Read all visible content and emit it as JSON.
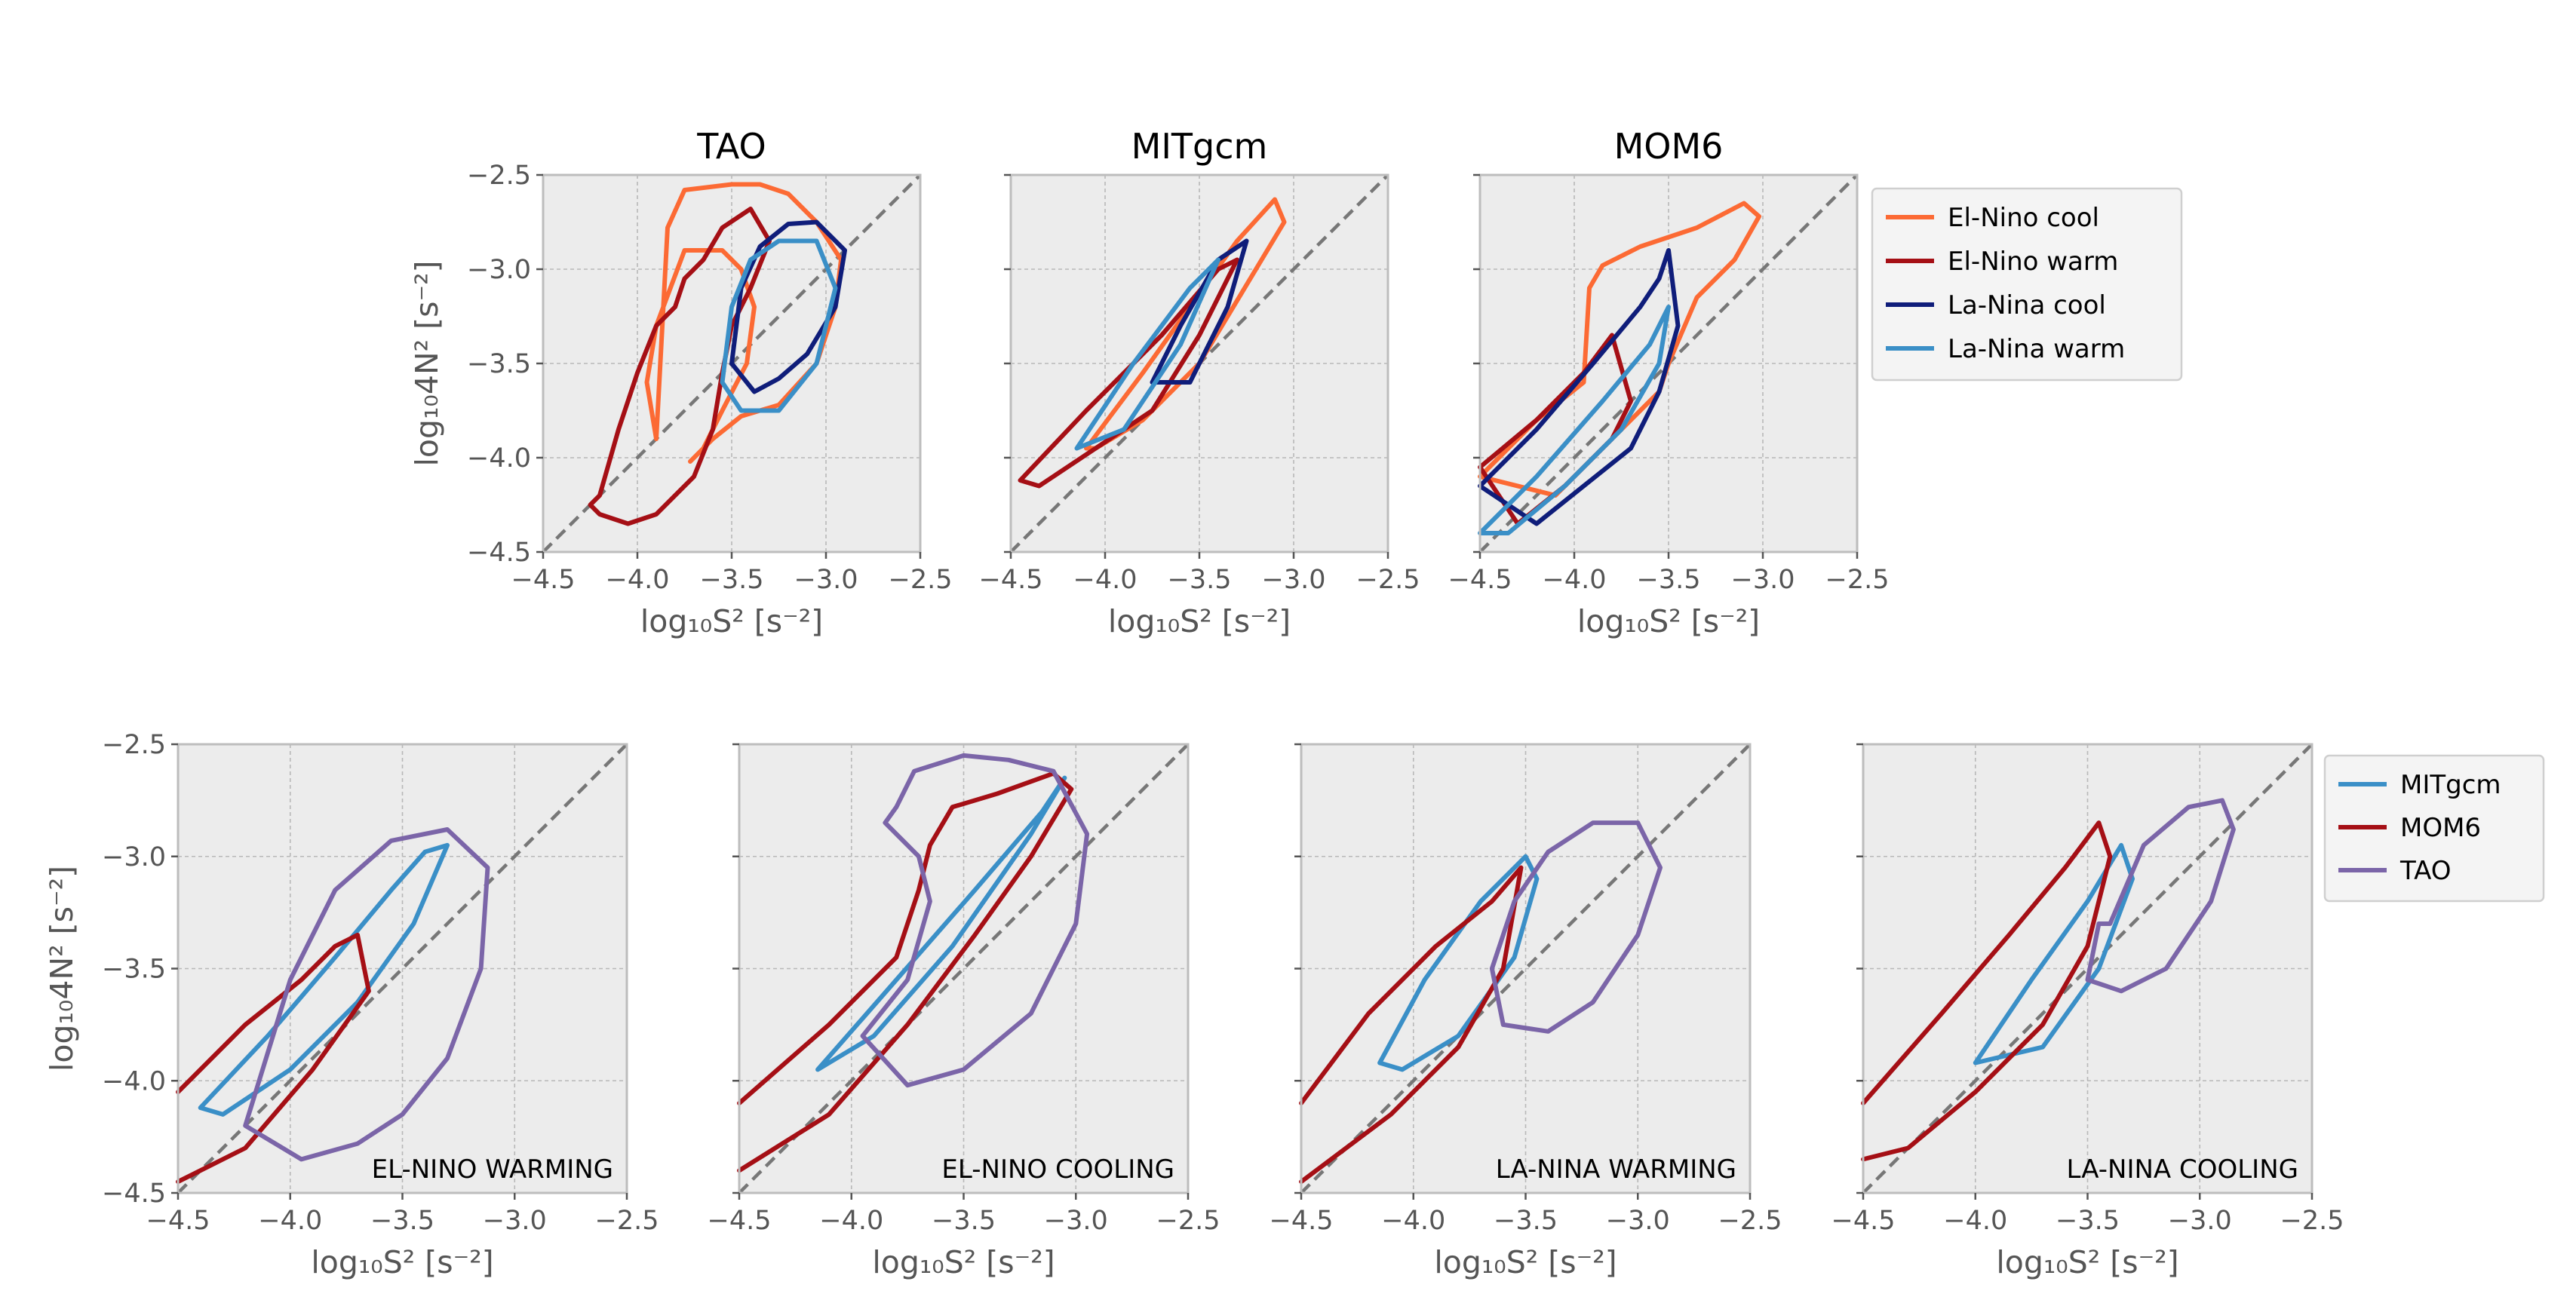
{
  "figure": {
    "rows": [
      {
        "ylabel": "log₁₀4N² [s⁻²]",
        "legend": [
          "El-Nino cool",
          "El-Nino warm",
          "La-Nina cool",
          "La-Nina warm"
        ],
        "panels": [
          {
            "title": "TAO",
            "xlabel": "log₁₀S² [s⁻²]",
            "annotation": ""
          },
          {
            "title": "MITgcm",
            "xlabel": "log₁₀S² [s⁻²]",
            "annotation": ""
          },
          {
            "title": "MOM6",
            "xlabel": "log₁₀S² [s⁻²]",
            "annotation": ""
          }
        ]
      },
      {
        "ylabel": "log₁₀4N² [s⁻²]",
        "legend": [
          "MITgcm",
          "MOM6",
          "TAO"
        ],
        "panels": [
          {
            "title": "",
            "xlabel": "log₁₀S² [s⁻²]",
            "annotation": "EL-NINO WARMING"
          },
          {
            "title": "",
            "xlabel": "log₁₀S² [s⁻²]",
            "annotation": "EL-NINO COOLING"
          },
          {
            "title": "",
            "xlabel": "log₁₀S² [s⁻²]",
            "annotation": "LA-NINA WARMING"
          },
          {
            "title": "",
            "xlabel": "log₁₀S² [s⁻²]",
            "annotation": "LA-NINA COOLING"
          }
        ]
      }
    ]
  },
  "chart_data": [
    {
      "type": "line",
      "title": "TAO",
      "xlabel": "log₁₀S² [s⁻²]",
      "ylabel": "log₁₀4N² [s⁻²]",
      "xlim": [
        -4.5,
        -2.5
      ],
      "ylim": [
        -4.5,
        -2.5
      ],
      "xticks": [
        -4.5,
        -4.0,
        -3.5,
        -3.0,
        -2.5
      ],
      "yticks": [
        -4.5,
        -4.0,
        -3.5,
        -3.0,
        -2.5
      ],
      "tick_labels": [
        "−4.5",
        "−4.0",
        "−3.5",
        "−3.0",
        "−2.5"
      ],
      "reference_line": [
        [
          -4.5,
          -4.5
        ],
        [
          -2.5,
          -2.5
        ]
      ],
      "grid": true,
      "legend": "outside-right",
      "series": [
        {
          "name": "El-Nino cool",
          "color": "#fc6a34",
          "x": [
            -3.84,
            -3.75,
            -3.5,
            -3.35,
            -3.2,
            -3.05,
            -2.92,
            -2.95,
            -3.05,
            -3.25,
            -3.45,
            -3.6,
            -3.72,
            -3.65,
            -3.55,
            -3.42,
            -3.38,
            -3.45,
            -3.55,
            -3.75,
            -3.9,
            -3.95,
            -3.9,
            -3.84
          ],
          "y": [
            -2.78,
            -2.58,
            -2.55,
            -2.55,
            -2.6,
            -2.75,
            -2.95,
            -3.2,
            -3.5,
            -3.72,
            -3.78,
            -3.9,
            -4.02,
            -3.95,
            -3.75,
            -3.5,
            -3.2,
            -3.0,
            -2.9,
            -2.9,
            -3.3,
            -3.6,
            -3.9,
            -2.78
          ]
        },
        {
          "name": "El-Nino warm",
          "color": "#a50f15",
          "x": [
            -4.2,
            -4.1,
            -4.0,
            -3.9,
            -3.8,
            -3.75,
            -3.65,
            -3.55,
            -3.4,
            -3.3,
            -3.4,
            -3.5,
            -3.55,
            -3.6,
            -3.7,
            -3.9,
            -4.05,
            -4.2,
            -4.25,
            -4.2
          ],
          "y": [
            -4.2,
            -3.85,
            -3.55,
            -3.3,
            -3.2,
            -3.05,
            -2.95,
            -2.78,
            -2.68,
            -2.85,
            -3.1,
            -3.3,
            -3.55,
            -3.85,
            -4.1,
            -4.3,
            -4.35,
            -4.3,
            -4.25,
            -4.2
          ]
        },
        {
          "name": "La-Nina cool",
          "color": "#0f1d7a",
          "x": [
            -3.5,
            -3.45,
            -3.35,
            -3.2,
            -3.05,
            -2.9,
            -2.95,
            -3.1,
            -3.25,
            -3.38,
            -3.5
          ],
          "y": [
            -3.5,
            -3.1,
            -2.88,
            -2.76,
            -2.75,
            -2.9,
            -3.2,
            -3.45,
            -3.58,
            -3.65,
            -3.5
          ]
        },
        {
          "name": "La-Nina warm",
          "color": "#3a8fc7",
          "x": [
            -3.55,
            -3.5,
            -3.4,
            -3.25,
            -3.05,
            -2.95,
            -3.05,
            -3.25,
            -3.45,
            -3.55
          ],
          "y": [
            -3.6,
            -3.2,
            -2.95,
            -2.85,
            -2.85,
            -3.1,
            -3.5,
            -3.75,
            -3.75,
            -3.6
          ]
        }
      ]
    },
    {
      "type": "line",
      "title": "MITgcm",
      "xlabel": "log₁₀S² [s⁻²]",
      "xlim": [
        -4.5,
        -2.5
      ],
      "ylim": [
        -4.5,
        -2.5
      ],
      "xticks": [
        -4.5,
        -4.0,
        -3.5,
        -3.0,
        -2.5
      ],
      "tick_labels": [
        "−4.5",
        "−4.0",
        "−3.5",
        "−3.0",
        "−2.5"
      ],
      "reference_line": [
        [
          -4.5,
          -4.5
        ],
        [
          -2.5,
          -2.5
        ]
      ],
      "grid": true,
      "series": [
        {
          "name": "El-Nino cool",
          "color": "#fc6a34",
          "x": [
            -4.1,
            -3.8,
            -3.55,
            -3.3,
            -3.1,
            -3.05,
            -3.2,
            -3.5,
            -3.8,
            -4.05,
            -4.1
          ],
          "y": [
            -3.95,
            -3.55,
            -3.2,
            -2.85,
            -2.63,
            -2.75,
            -3.0,
            -3.5,
            -3.8,
            -3.95,
            -3.95
          ]
        },
        {
          "name": "El-Nino warm",
          "color": "#a50f15",
          "x": [
            -4.45,
            -4.1,
            -3.7,
            -3.4,
            -3.3,
            -3.5,
            -3.75,
            -4.05,
            -4.35,
            -4.45
          ],
          "y": [
            -4.12,
            -3.75,
            -3.35,
            -3.0,
            -2.95,
            -3.35,
            -3.75,
            -3.95,
            -4.15,
            -4.12
          ]
        },
        {
          "name": "La-Nina cool",
          "color": "#0f1d7a",
          "x": [
            -3.75,
            -3.6,
            -3.4,
            -3.25,
            -3.35,
            -3.55,
            -3.75
          ],
          "y": [
            -3.6,
            -3.3,
            -2.95,
            -2.85,
            -3.2,
            -3.6,
            -3.6
          ]
        },
        {
          "name": "La-Nina warm",
          "color": "#3a8fc7",
          "x": [
            -4.15,
            -3.85,
            -3.55,
            -3.4,
            -3.6,
            -3.9,
            -4.15
          ],
          "y": [
            -3.95,
            -3.5,
            -3.1,
            -2.95,
            -3.4,
            -3.85,
            -3.95
          ]
        }
      ]
    },
    {
      "type": "line",
      "title": "MOM6",
      "xlabel": "log₁₀S² [s⁻²]",
      "xlim": [
        -4.5,
        -2.5
      ],
      "ylim": [
        -4.5,
        -2.5
      ],
      "xticks": [
        -4.5,
        -4.0,
        -3.5,
        -3.0,
        -2.5
      ],
      "tick_labels": [
        "−4.5",
        "−4.0",
        "−3.5",
        "−3.0",
        "−2.5"
      ],
      "reference_line": [
        [
          -4.5,
          -4.5
        ],
        [
          -2.5,
          -2.5
        ]
      ],
      "grid": true,
      "series": [
        {
          "name": "El-Nino cool",
          "color": "#fc6a34",
          "x": [
            -4.5,
            -4.2,
            -3.95,
            -3.92,
            -3.85,
            -3.65,
            -3.35,
            -3.1,
            -3.02,
            -3.15,
            -3.35,
            -3.5,
            -3.55,
            -3.8,
            -4.1,
            -4.5
          ],
          "y": [
            -4.1,
            -3.8,
            -3.6,
            -3.1,
            -2.98,
            -2.88,
            -2.78,
            -2.65,
            -2.72,
            -2.95,
            -3.15,
            -3.5,
            -3.65,
            -3.9,
            -4.2,
            -4.1
          ]
        },
        {
          "name": "El-Nino warm",
          "color": "#a50f15",
          "x": [
            -4.5,
            -4.2,
            -3.95,
            -3.8,
            -3.7,
            -3.8,
            -4.05,
            -4.3,
            -4.5
          ],
          "y": [
            -4.05,
            -3.8,
            -3.55,
            -3.35,
            -3.7,
            -3.9,
            -4.15,
            -4.35,
            -4.05
          ]
        },
        {
          "name": "La-Nina cool",
          "color": "#0f1d7a",
          "x": [
            -4.5,
            -4.2,
            -3.9,
            -3.65,
            -3.55,
            -3.5,
            -3.45,
            -3.55,
            -3.7,
            -3.95,
            -4.2,
            -4.5
          ],
          "y": [
            -4.15,
            -3.85,
            -3.5,
            -3.2,
            -3.05,
            -2.9,
            -3.3,
            -3.65,
            -3.95,
            -4.15,
            -4.35,
            -4.15
          ]
        },
        {
          "name": "La-Nina warm",
          "color": "#3a8fc7",
          "x": [
            -4.5,
            -4.2,
            -3.85,
            -3.6,
            -3.5,
            -3.55,
            -3.75,
            -4.05,
            -4.35,
            -4.5
          ],
          "y": [
            -4.4,
            -4.1,
            -3.7,
            -3.4,
            -3.2,
            -3.5,
            -3.85,
            -4.15,
            -4.4,
            -4.4
          ]
        }
      ]
    },
    {
      "type": "line",
      "title": "",
      "annotation": "EL-NINO WARMING",
      "xlabel": "log₁₀S² [s⁻²]",
      "ylabel": "log₁₀4N² [s⁻²]",
      "xlim": [
        -4.5,
        -2.5
      ],
      "ylim": [
        -4.5,
        -2.5
      ],
      "xticks": [
        -4.5,
        -4.0,
        -3.5,
        -3.0,
        -2.5
      ],
      "yticks": [
        -4.5,
        -4.0,
        -3.5,
        -3.0,
        -2.5
      ],
      "tick_labels": [
        "−4.5",
        "−4.0",
        "−3.5",
        "−3.0",
        "−2.5"
      ],
      "reference_line": [
        [
          -4.5,
          -4.5
        ],
        [
          -2.5,
          -2.5
        ]
      ],
      "grid": true,
      "legend": "outside-right",
      "series": [
        {
          "name": "MITgcm",
          "color": "#3a8fc7",
          "x": [
            -4.4,
            -4.1,
            -3.8,
            -3.55,
            -3.4,
            -3.3,
            -3.45,
            -3.7,
            -4.0,
            -4.3,
            -4.4
          ],
          "y": [
            -4.12,
            -3.8,
            -3.45,
            -3.15,
            -2.98,
            -2.95,
            -3.3,
            -3.65,
            -3.95,
            -4.15,
            -4.12
          ]
        },
        {
          "name": "MOM6",
          "color": "#a50f15",
          "x": [
            -4.5,
            -4.2,
            -3.95,
            -3.8,
            -3.7,
            -3.65,
            -3.9,
            -4.2,
            -4.5
          ],
          "y": [
            -4.05,
            -3.75,
            -3.55,
            -3.4,
            -3.35,
            -3.6,
            -3.95,
            -4.3,
            -4.45
          ]
        },
        {
          "name": "TAO",
          "color": "#7b65a8",
          "x": [
            -4.2,
            -4.0,
            -3.8,
            -3.55,
            -3.3,
            -3.12,
            -3.15,
            -3.3,
            -3.5,
            -3.7,
            -3.95,
            -4.2
          ],
          "y": [
            -4.2,
            -3.55,
            -3.15,
            -2.93,
            -2.88,
            -3.05,
            -3.5,
            -3.9,
            -4.15,
            -4.28,
            -4.35,
            -4.2
          ]
        }
      ]
    },
    {
      "type": "line",
      "title": "",
      "annotation": "EL-NINO COOLING",
      "xlabel": "log₁₀S² [s⁻²]",
      "xlim": [
        -4.5,
        -2.5
      ],
      "ylim": [
        -4.5,
        -2.5
      ],
      "xticks": [
        -4.5,
        -4.0,
        -3.5,
        -3.0,
        -2.5
      ],
      "tick_labels": [
        "−4.5",
        "−4.0",
        "−3.5",
        "−3.0",
        "−2.5"
      ],
      "reference_line": [
        [
          -4.5,
          -4.5
        ],
        [
          -2.5,
          -2.5
        ]
      ],
      "grid": true,
      "series": [
        {
          "name": "MITgcm",
          "color": "#3a8fc7",
          "x": [
            -4.15,
            -3.8,
            -3.45,
            -3.15,
            -3.05,
            -3.2,
            -3.55,
            -3.9,
            -4.15
          ],
          "y": [
            -3.95,
            -3.55,
            -3.15,
            -2.8,
            -2.65,
            -2.9,
            -3.4,
            -3.8,
            -3.95
          ]
        },
        {
          "name": "MOM6",
          "color": "#a50f15",
          "x": [
            -4.5,
            -4.1,
            -3.8,
            -3.7,
            -3.65,
            -3.55,
            -3.35,
            -3.1,
            -3.02,
            -3.2,
            -3.45,
            -3.75,
            -4.1,
            -4.5
          ],
          "y": [
            -4.1,
            -3.75,
            -3.45,
            -3.15,
            -2.95,
            -2.78,
            -2.72,
            -2.63,
            -2.7,
            -3.0,
            -3.35,
            -3.75,
            -4.15,
            -4.4
          ]
        },
        {
          "name": "TAO",
          "color": "#7b65a8",
          "x": [
            -3.8,
            -3.72,
            -3.5,
            -3.3,
            -3.1,
            -2.95,
            -3.0,
            -3.2,
            -3.5,
            -3.75,
            -3.95,
            -3.75,
            -3.65,
            -3.7,
            -3.85,
            -3.8
          ],
          "y": [
            -2.78,
            -2.62,
            -2.55,
            -2.57,
            -2.62,
            -2.9,
            -3.3,
            -3.7,
            -3.95,
            -4.02,
            -3.8,
            -3.55,
            -3.2,
            -3.0,
            -2.85,
            -2.78
          ]
        }
      ]
    },
    {
      "type": "line",
      "title": "",
      "annotation": "LA-NINA WARMING",
      "xlabel": "log₁₀S² [s⁻²]",
      "xlim": [
        -4.5,
        -2.5
      ],
      "ylim": [
        -4.5,
        -2.5
      ],
      "xticks": [
        -4.5,
        -4.0,
        -3.5,
        -3.0,
        -2.5
      ],
      "tick_labels": [
        "−4.5",
        "−4.0",
        "−3.5",
        "−3.0",
        "−2.5"
      ],
      "reference_line": [
        [
          -4.5,
          -4.5
        ],
        [
          -2.5,
          -2.5
        ]
      ],
      "grid": true,
      "series": [
        {
          "name": "MITgcm",
          "color": "#3a8fc7",
          "x": [
            -4.15,
            -3.95,
            -3.7,
            -3.5,
            -3.45,
            -3.55,
            -3.8,
            -4.05,
            -4.15
          ],
          "y": [
            -3.92,
            -3.55,
            -3.2,
            -3.0,
            -3.1,
            -3.45,
            -3.8,
            -3.95,
            -3.92
          ]
        },
        {
          "name": "MOM6",
          "color": "#a50f15",
          "x": [
            -4.5,
            -4.2,
            -3.9,
            -3.65,
            -3.52,
            -3.6,
            -3.8,
            -4.1,
            -4.5
          ],
          "y": [
            -4.1,
            -3.7,
            -3.4,
            -3.2,
            -3.05,
            -3.5,
            -3.85,
            -4.15,
            -4.45
          ]
        },
        {
          "name": "TAO",
          "color": "#7b65a8",
          "x": [
            -3.55,
            -3.4,
            -3.2,
            -3.0,
            -2.9,
            -3.0,
            -3.2,
            -3.4,
            -3.6,
            -3.65,
            -3.55
          ],
          "y": [
            -3.2,
            -2.98,
            -2.85,
            -2.85,
            -3.05,
            -3.35,
            -3.65,
            -3.78,
            -3.75,
            -3.5,
            -3.2
          ]
        }
      ]
    },
    {
      "type": "line",
      "title": "",
      "annotation": "LA-NINA COOLING",
      "xlabel": "log₁₀S² [s⁻²]",
      "xlim": [
        -4.5,
        -2.5
      ],
      "ylim": [
        -4.5,
        -2.5
      ],
      "xticks": [
        -4.5,
        -4.0,
        -3.5,
        -3.0,
        -2.5
      ],
      "tick_labels": [
        "−4.5",
        "−4.0",
        "−3.5",
        "−3.0",
        "−2.5"
      ],
      "reference_line": [
        [
          -4.5,
          -4.5
        ],
        [
          -2.5,
          -2.5
        ]
      ],
      "grid": true,
      "series": [
        {
          "name": "MITgcm",
          "color": "#3a8fc7",
          "x": [
            -4.0,
            -3.75,
            -3.5,
            -3.35,
            -3.3,
            -3.45,
            -3.7,
            -4.0
          ],
          "y": [
            -3.92,
            -3.55,
            -3.2,
            -2.95,
            -3.1,
            -3.5,
            -3.85,
            -3.92
          ]
        },
        {
          "name": "MOM6",
          "color": "#a50f15",
          "x": [
            -4.5,
            -4.15,
            -3.85,
            -3.6,
            -3.45,
            -3.4,
            -3.5,
            -3.7,
            -4.0,
            -4.3,
            -4.5
          ],
          "y": [
            -4.1,
            -3.7,
            -3.35,
            -3.05,
            -2.85,
            -3.0,
            -3.4,
            -3.75,
            -4.05,
            -4.3,
            -4.35
          ]
        },
        {
          "name": "TAO",
          "color": "#7b65a8",
          "x": [
            -3.4,
            -3.25,
            -3.05,
            -2.9,
            -2.85,
            -2.95,
            -3.15,
            -3.35,
            -3.5,
            -3.45,
            -3.4
          ],
          "y": [
            -3.3,
            -2.95,
            -2.78,
            -2.75,
            -2.88,
            -3.2,
            -3.5,
            -3.6,
            -3.55,
            -3.3,
            -3.3
          ]
        }
      ]
    }
  ]
}
